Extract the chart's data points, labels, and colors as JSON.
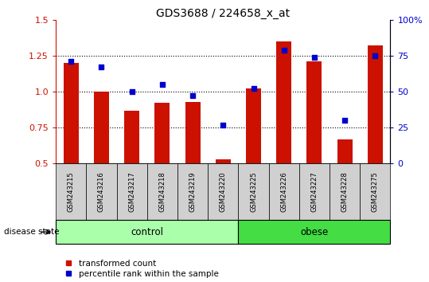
{
  "title": "GDS3688 / 224658_x_at",
  "samples": [
    "GSM243215",
    "GSM243216",
    "GSM243217",
    "GSM243218",
    "GSM243219",
    "GSM243220",
    "GSM243225",
    "GSM243226",
    "GSM243227",
    "GSM243228",
    "GSM243275"
  ],
  "transformed_count": [
    1.2,
    1.0,
    0.87,
    0.92,
    0.93,
    0.53,
    1.02,
    1.35,
    1.21,
    0.67,
    1.32
  ],
  "percentile_rank": [
    71,
    67,
    50,
    55,
    47,
    27,
    52,
    79,
    74,
    30,
    75
  ],
  "groups": [
    {
      "label": "control",
      "start": 0,
      "end": 6,
      "color": "#90ee90"
    },
    {
      "label": "obese",
      "start": 6,
      "end": 11,
      "color": "#32cd32"
    }
  ],
  "bar_color": "#cc1100",
  "scatter_color": "#0000cc",
  "ylim_left": [
    0.5,
    1.5
  ],
  "ylim_right": [
    0,
    100
  ],
  "yticks_left": [
    0.5,
    0.75,
    1.0,
    1.25,
    1.5
  ],
  "yticks_right": [
    0,
    25,
    50,
    75,
    100
  ],
  "ytick_labels_right": [
    "0",
    "25",
    "50",
    "75",
    "100%"
  ],
  "grid_values": [
    0.75,
    1.0,
    1.25
  ],
  "left_tick_color": "#cc1100",
  "right_tick_color": "#0000cc",
  "disease_state_label": "disease state",
  "legend_items": [
    "transformed count",
    "percentile rank within the sample"
  ],
  "bar_width": 0.5,
  "plot_bg_color": "#ffffff",
  "sample_box_color": "#d0d0d0",
  "control_color": "#aaffaa",
  "obese_color": "#44dd44"
}
